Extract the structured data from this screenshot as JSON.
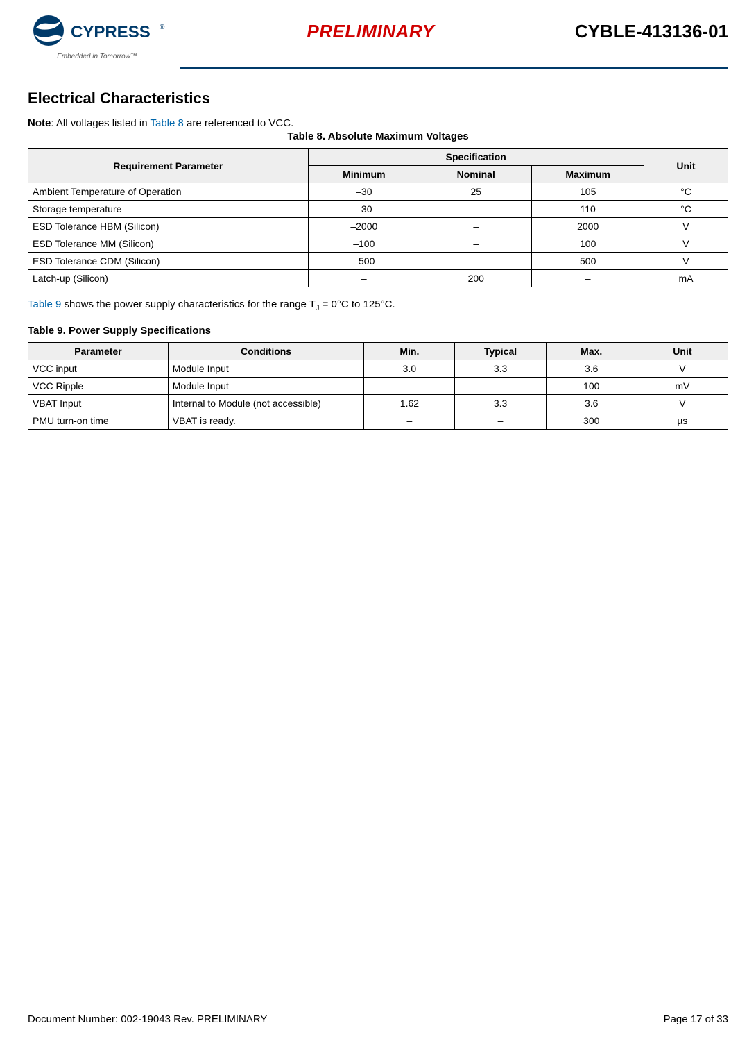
{
  "header": {
    "brand": "CYPRESS",
    "tagline": "Embedded in Tomorrow™",
    "preliminary": "PRELIMINARY",
    "part_number": "CYBLE-413136-01",
    "rule_color": "#003a6a"
  },
  "section": {
    "heading": "Electrical Characteristics",
    "note_prefix": "Note",
    "note_mid1": ": All voltages listed in ",
    "note_link": "Table 8",
    "note_mid2": " are referenced to VCC."
  },
  "table8": {
    "caption": "Table 8.  Absolute Maximum Voltages",
    "head_param": "Requirement Parameter",
    "head_spec": "Specification",
    "head_min": "Minimum",
    "head_nom": "Nominal",
    "head_max": "Maximum",
    "head_unit": "Unit",
    "rows": [
      {
        "p": "Ambient Temperature of Operation",
        "min": "–30",
        "nom": "25",
        "max": "105",
        "unit": "°C"
      },
      {
        "p": "Storage temperature",
        "min": "–30",
        "nom": "–",
        "max": "110",
        "unit": "°C"
      },
      {
        "p": "ESD Tolerance HBM (Silicon)",
        "min": "–2000",
        "nom": "–",
        "max": "2000",
        "unit": "V"
      },
      {
        "p": "ESD Tolerance MM (Silicon)",
        "min": "–100",
        "nom": "–",
        "max": "100",
        "unit": "V"
      },
      {
        "p": "ESD Tolerance CDM (Silicon)",
        "min": "–500",
        "nom": "–",
        "max": "500",
        "unit": "V"
      },
      {
        "p": "Latch-up (Silicon)",
        "min": "–",
        "nom": "200",
        "max": "–",
        "unit": "mA"
      }
    ]
  },
  "mid_text": {
    "link": "Table 9",
    "rest1": " shows the power supply characteristics for the range T",
    "sub": "J",
    "rest2": " = 0°C to 125°C."
  },
  "table9": {
    "caption": "Table 9.  Power Supply Specifications",
    "head_param": "Parameter",
    "head_cond": "Conditions",
    "head_min": "Min.",
    "head_typ": "Typical",
    "head_max": "Max.",
    "head_unit": "Unit",
    "rows": [
      {
        "p": "VCC input",
        "c": "Module Input",
        "min": "3.0",
        "typ": "3.3",
        "max": "3.6",
        "unit": "V"
      },
      {
        "p": "VCC Ripple",
        "c": "Module Input",
        "min": "–",
        "typ": "–",
        "max": "100",
        "unit": "mV"
      },
      {
        "p": "VBAT Input",
        "c": "Internal to Module (not accessible)",
        "min": "1.62",
        "typ": "3.3",
        "max": "3.6",
        "unit": "V"
      },
      {
        "p": "PMU turn-on time",
        "c": "VBAT is ready.",
        "min": "–",
        "typ": "–",
        "max": "300",
        "unit": "µs"
      }
    ]
  },
  "footer": {
    "doc": "Document Number:  002-19043 Rev. PRELIMINARY",
    "page": "Page 17 of 33"
  },
  "colors": {
    "link": "#0066aa",
    "preliminary": "#d00000",
    "header_bg": "#eeeeee"
  }
}
